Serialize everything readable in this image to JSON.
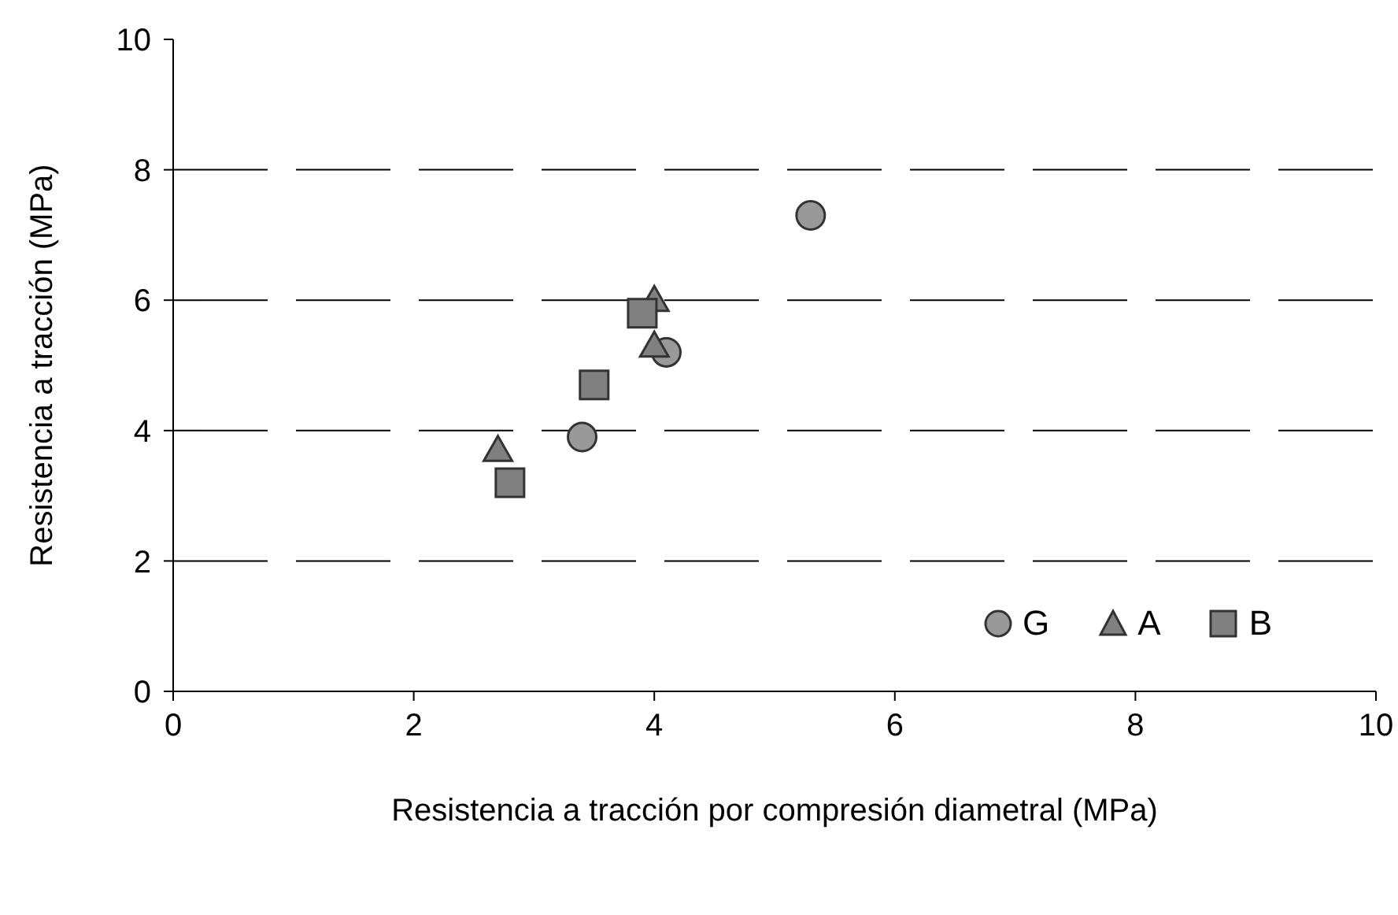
{
  "chart_data": {
    "type": "scatter",
    "xlabel": "Resistencia a tracción por compresión diametral (MPa)",
    "ylabel": "Resistencia a tracción (MPa)",
    "xlim": [
      0,
      10
    ],
    "xticks": [
      0,
      2,
      4,
      6,
      8,
      10
    ],
    "ylim": [
      0,
      10
    ],
    "yticks": [
      0,
      2,
      4,
      6,
      8,
      10
    ],
    "grid": "y",
    "legend": "bottom right",
    "series": [
      {
        "name": "G",
        "color": "#999999",
        "marker": "circle",
        "x": [
          3.4,
          4.1,
          5.3
        ],
        "values": [
          3.9,
          5.2,
          7.3
        ]
      },
      {
        "name": "A",
        "color": "#808080",
        "marker": "triangle",
        "x": [
          2.7,
          4.0,
          4.0
        ],
        "values": [
          3.7,
          6.0,
          5.3
        ]
      },
      {
        "name": "B",
        "color": "#808080",
        "marker": "square",
        "x": [
          2.8,
          3.5,
          3.9
        ],
        "values": [
          3.2,
          4.7,
          5.8
        ]
      }
    ]
  }
}
